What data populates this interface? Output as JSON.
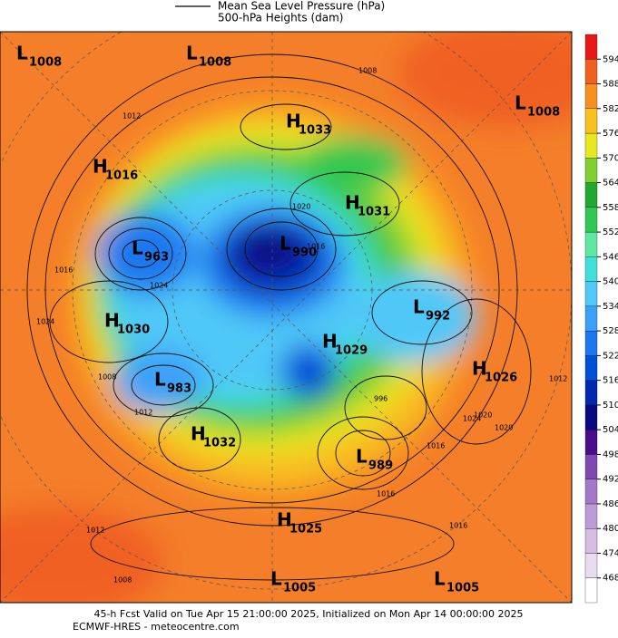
{
  "legend": {
    "lines": [
      "Mean Sea Level Pressure (hPa)",
      "500-hPa Heights (dam)"
    ]
  },
  "pressure_centers": [
    {
      "type": "L",
      "value": 1008
    },
    {
      "type": "L",
      "value": 1008
    },
    {
      "type": "H",
      "value": 1033
    },
    {
      "type": "L",
      "value": 1008
    },
    {
      "type": "H",
      "value": 1016
    },
    {
      "type": "H",
      "value": 1031
    },
    {
      "type": "L",
      "value": 963
    },
    {
      "type": "L",
      "value": 990
    },
    {
      "type": "H",
      "value": 1030
    },
    {
      "type": "L",
      "value": 992
    },
    {
      "type": "H",
      "value": 1029
    },
    {
      "type": "H",
      "value": 1026
    },
    {
      "type": "L",
      "value": 983
    },
    {
      "type": "H",
      "value": 1032
    },
    {
      "type": "L",
      "value": 989
    },
    {
      "type": "H",
      "value": 1025
    },
    {
      "type": "L",
      "value": 1005
    },
    {
      "type": "L",
      "value": 1005
    }
  ],
  "contour_labels": [
    1012,
    1008,
    1016,
    1024,
    1020,
    1016,
    1024,
    1012,
    1008,
    996,
    1020,
    1024,
    1016,
    1012,
    1020,
    1016,
    1012,
    1008,
    1016
  ],
  "colorbar": {
    "levels": [
      468,
      474,
      480,
      486,
      492,
      498,
      504,
      510,
      516,
      522,
      528,
      534,
      540,
      546,
      552,
      558,
      564,
      570,
      576,
      582,
      588,
      594
    ],
    "colors": [
      "#ffffff",
      "#e8dcf0",
      "#d4bce4",
      "#bc9cd8",
      "#a478c8",
      "#8048b0",
      "#4b0c8c",
      "#0a0a80",
      "#0028b0",
      "#0050d8",
      "#1c78f0",
      "#3ca0f8",
      "#50c8f8",
      "#40e0d8",
      "#60e8a0",
      "#30c850",
      "#20a830",
      "#80d030",
      "#e8e820",
      "#f8c020",
      "#f89020",
      "#f06020",
      "#e81818"
    ]
  },
  "footer": {
    "line1": "45-h Fcst Valid on Tue Apr 15 21:00:00 2025, Initialized on Mon Apr 14 00:00:00 2025",
    "line2": "ECMWF-HRES - meteocentre.com"
  }
}
